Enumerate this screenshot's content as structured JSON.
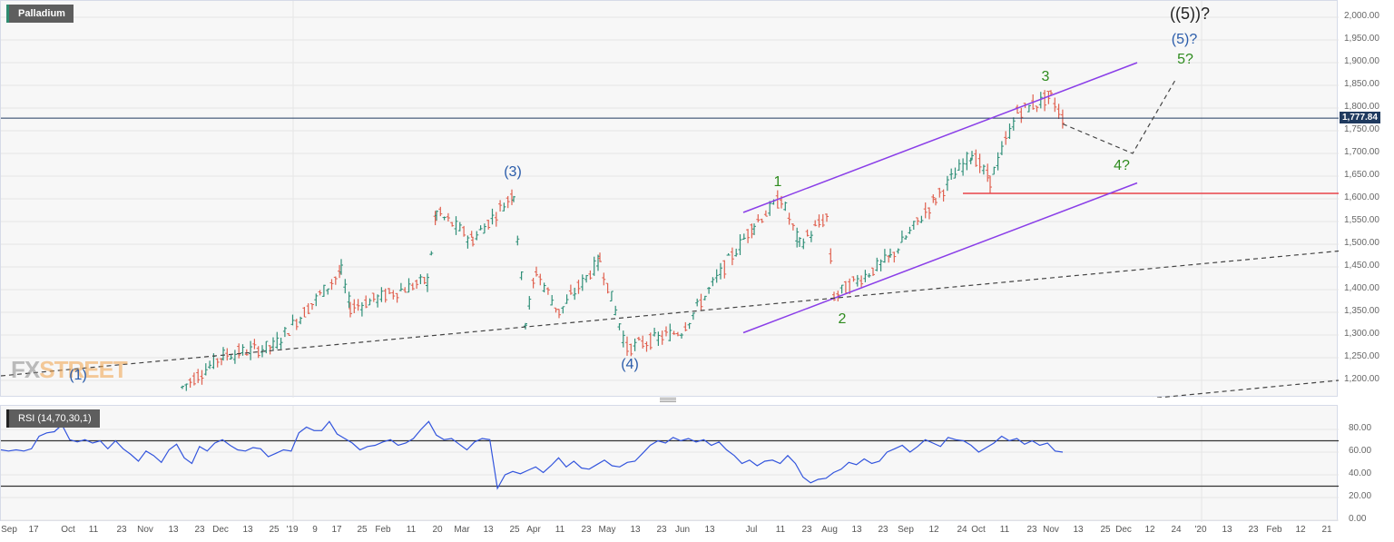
{
  "chart_data": {
    "type": "bar",
    "title": "Palladium",
    "subtype": "OHLC daily price bars with Elliott Wave annotations",
    "last_price": 1777.84,
    "price_axis": {
      "ticks": [
        "2,000.00",
        "1,950.00",
        "1,900.00",
        "1,850.00",
        "1,800.00",
        "1,750.00",
        "1,700.00",
        "1,650.00",
        "1,600.00",
        "1,550.00",
        "1,500.00",
        "1,450.00",
        "1,400.00",
        "1,350.00",
        "1,300.00",
        "1,250.00",
        "1,200.00"
      ],
      "ylim": [
        1170,
        2030
      ],
      "grid": true
    },
    "x_axis": {
      "ticks": [
        "Sep",
        "17",
        "Oct",
        "11",
        "23",
        "Nov",
        "13",
        "23",
        "Dec",
        "13",
        "25",
        "'19",
        "9",
        "17",
        "25",
        "Feb",
        "11",
        "20",
        "Mar",
        "13",
        "25",
        "Apr",
        "11",
        "23",
        "May",
        "13",
        "23",
        "Jun",
        "13",
        "Jul",
        "11",
        "23",
        "Aug",
        "13",
        "23",
        "Sep",
        "12",
        "24",
        "Oct",
        "11",
        "23",
        "Nov",
        "13",
        "25",
        "Dec",
        "12",
        "24",
        "'20",
        "13",
        "23",
        "Feb",
        "12",
        "21"
      ]
    },
    "series": [
      {
        "name": "Palladium price (approx. swing points)",
        "points": [
          {
            "date": "Dec 2018",
            "price": 1185
          },
          {
            "date": "late Dec 2018",
            "price": 1255
          },
          {
            "date": "early Jan 2019",
            "price": 1275
          },
          {
            "date": "Jan 17 2019",
            "price": 1440
          },
          {
            "date": "Jan 2019",
            "price": 1360
          },
          {
            "date": "Feb 2019",
            "price": 1420
          },
          {
            "date": "late Feb 2019",
            "price": 1570
          },
          {
            "date": "Mar 2019",
            "price": 1510
          },
          {
            "date": "Mar 21 2019",
            "price": 1612
          },
          {
            "date": "Mar 29 2019",
            "price": 1330
          },
          {
            "date": "Apr 2019",
            "price": 1440
          },
          {
            "date": "Apr 2019",
            "price": 1350
          },
          {
            "date": "Apr 30 2019",
            "price": 1465
          },
          {
            "date": "May 15 2019",
            "price": 1270
          },
          {
            "date": "Jun 2019",
            "price": 1310
          },
          {
            "date": "late Jun 2019",
            "price": 1545
          },
          {
            "date": "Jul 10 2019",
            "price": 1600
          },
          {
            "date": "Jul 2019",
            "price": 1500
          },
          {
            "date": "late Jul 2019",
            "price": 1560
          },
          {
            "date": "Aug 1 2019",
            "price": 1385
          },
          {
            "date": "Aug 2019",
            "price": 1470
          },
          {
            "date": "Sep 2019",
            "price": 1600
          },
          {
            "date": "Oct 2019",
            "price": 1700
          },
          {
            "date": "Oct 2019",
            "price": 1640
          },
          {
            "date": "late Oct 2019",
            "price": 1790
          },
          {
            "date": "Nov 1 2019",
            "price": 1825
          },
          {
            "date": "Nov 2019",
            "price": 1777.84
          }
        ]
      }
    ],
    "annotations": [
      {
        "label": "(1)",
        "color": "#2a5caa",
        "price": 1205
      },
      {
        "label": "(3)",
        "color": "#2a5caa",
        "price": 1655
      },
      {
        "label": "(4)",
        "color": "#2a5caa",
        "price": 1245
      },
      {
        "label": "1",
        "color": "#2e8b1e",
        "price": 1630
      },
      {
        "label": "2",
        "color": "#2e8b1e",
        "price": 1355
      },
      {
        "label": "3",
        "color": "#2e8b1e",
        "price": 1860
      },
      {
        "label": "4?",
        "color": "#2e8b1e",
        "price": 1670
      },
      {
        "label": "5?",
        "color": "#2e8b1e",
        "price": 1900
      },
      {
        "label": "(5)?",
        "color": "#2a5caa",
        "price": 1950
      },
      {
        "label": "((5))?",
        "color": "#222222",
        "price": 2000
      }
    ],
    "lines": [
      {
        "type": "channel-upper",
        "color": "#8a3ee8",
        "from_price": 1570,
        "to_price": 1900
      },
      {
        "type": "channel-lower",
        "color": "#8a3ee8",
        "from_price": 1305,
        "to_price": 1635
      },
      {
        "type": "support-horizontal",
        "color": "#e8434a",
        "price": 1612
      },
      {
        "type": "trendline-dashed",
        "from_price": 1210,
        "to_price": 1485
      },
      {
        "type": "trendline-dashed-lower",
        "from_price": 1160,
        "to_price": 1200
      },
      {
        "type": "projection-dashed",
        "points": [
          1765,
          1700,
          1865
        ]
      },
      {
        "type": "last-price-line",
        "color": "#1f3a5f",
        "price": 1777.84
      }
    ]
  },
  "rsi_chart": {
    "type": "line",
    "title": "RSI (14,70,30,1)",
    "ylim": [
      0,
      100
    ],
    "ticks": [
      "80.00",
      "60.00",
      "40.00",
      "20.00",
      "0.00"
    ],
    "levels": [
      70,
      30
    ],
    "line_color": "#3355dd",
    "values": [
      62,
      61,
      62,
      61,
      63,
      74,
      77,
      78,
      84,
      71,
      69,
      71,
      68,
      70,
      63,
      70,
      63,
      58,
      52,
      61,
      57,
      51,
      62,
      67,
      55,
      50,
      65,
      61,
      68,
      71,
      66,
      62,
      61,
      64,
      63,
      56,
      59,
      62,
      61,
      77,
      82,
      79,
      79,
      87,
      76,
      72,
      68,
      62,
      65,
      66,
      69,
      71,
      66,
      68,
      72,
      80,
      87,
      75,
      71,
      72,
      67,
      62,
      69,
      72,
      71,
      28,
      40,
      43,
      41,
      44,
      47,
      42,
      48,
      55,
      47,
      52,
      46,
      45,
      49,
      53,
      48,
      47,
      51,
      52,
      59,
      66,
      70,
      68,
      73,
      70,
      72,
      69,
      71,
      66,
      69,
      62,
      57,
      50,
      53,
      48,
      52,
      53,
      50,
      57,
      50,
      38,
      33,
      36,
      37,
      42,
      45,
      51,
      49,
      54,
      50,
      52,
      60,
      63,
      66,
      60,
      65,
      71,
      68,
      65,
      73,
      71,
      70,
      66,
      60,
      64,
      68,
      74,
      70,
      72,
      67,
      70,
      66,
      68,
      61,
      60
    ],
    "last_value": 60
  },
  "header": {
    "instrument_label": "Palladium",
    "rsi_label": "RSI (14,70,30,1)",
    "last_price_label": "1,777.84"
  },
  "watermark": {
    "part1": "FX",
    "part2": "STREET"
  },
  "wave_labels": {
    "w1_paren": "(1)",
    "w3_paren": "(3)",
    "w4_paren": "(4)",
    "w5_paren": "(5)?",
    "w5_double": "((5))?",
    "m1": "1",
    "m2": "2",
    "m3": "3",
    "m4": "4?",
    "m5": "5?"
  }
}
